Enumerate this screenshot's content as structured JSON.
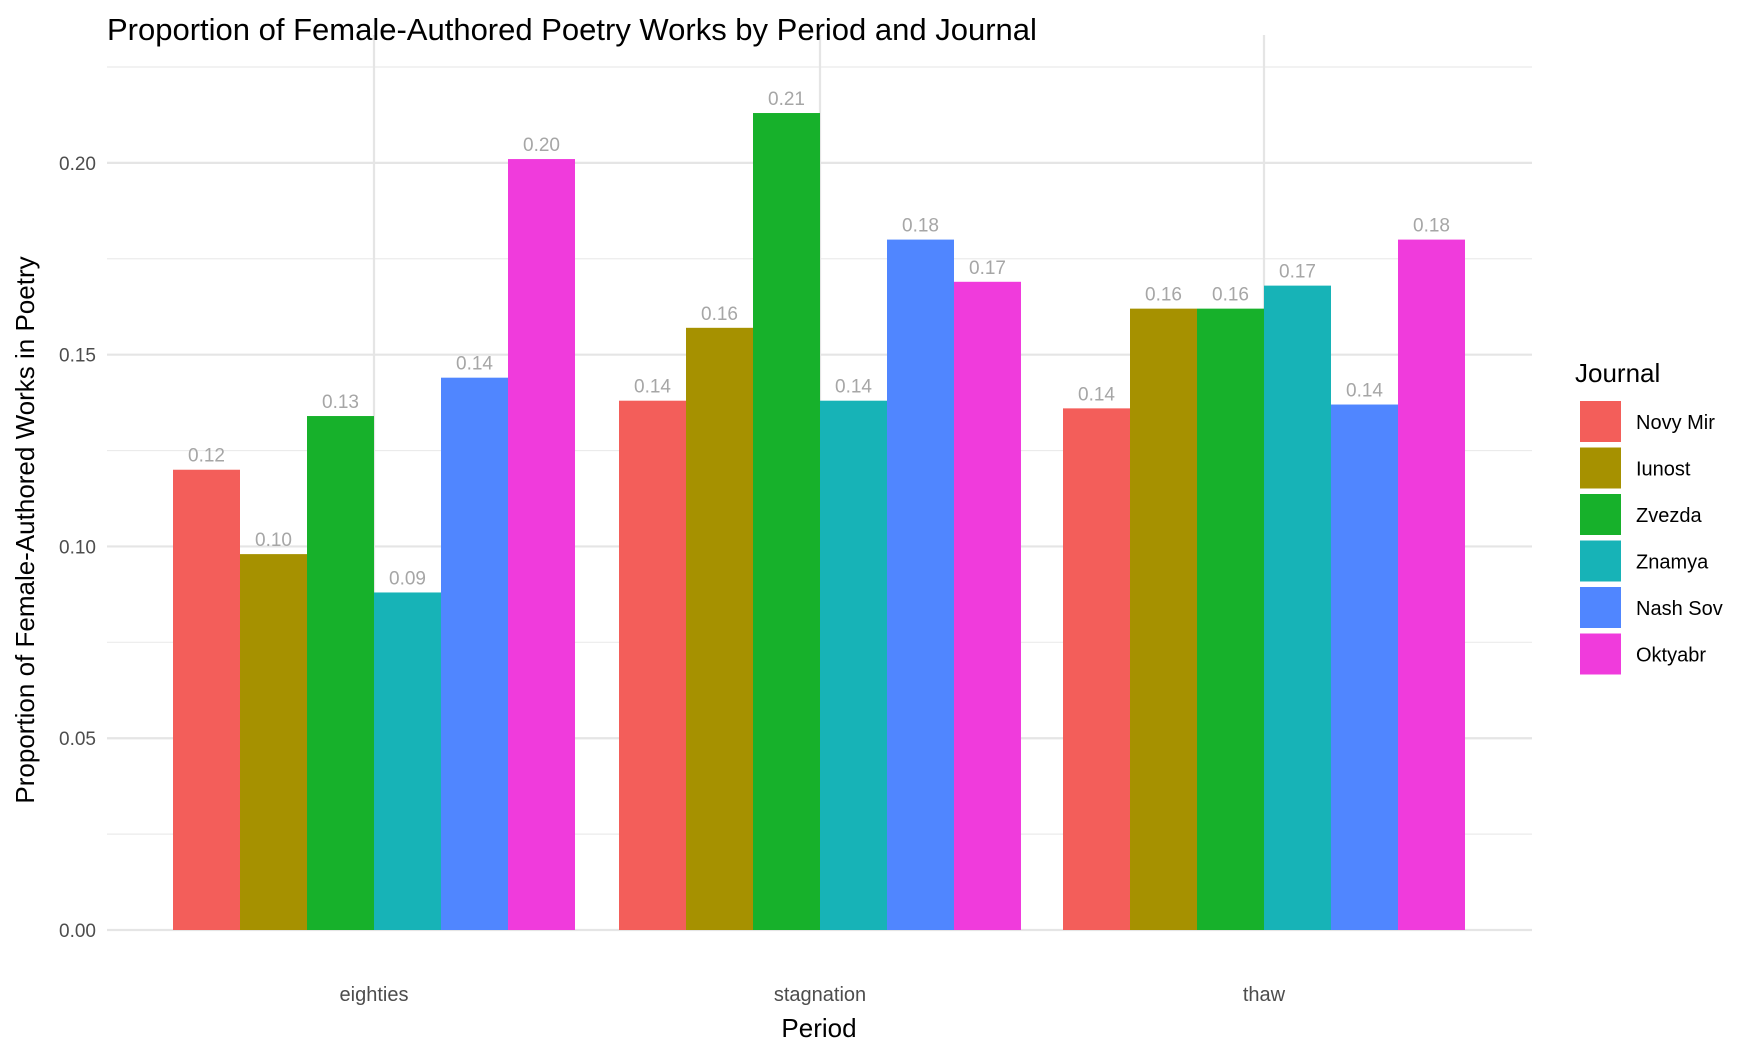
{
  "chart_data": {
    "type": "bar",
    "title": "Proportion of Female-Authored Poetry Works by Period and Journal",
    "xlabel": "Period",
    "ylabel": "Proportion of Female-Authored Works in Poetry",
    "categories": [
      "eighties",
      "stagnation",
      "thaw"
    ],
    "ylim": [
      0,
      0.225
    ],
    "yticks": [
      "0.00",
      "0.05",
      "0.10",
      "0.15",
      "0.20"
    ],
    "grid": true,
    "legend": {
      "title": "Journal",
      "placement": "right"
    },
    "series": [
      {
        "name": "Novy Mir",
        "color": "#F35E5A",
        "values": [
          0.12,
          0.138,
          0.136
        ],
        "labels": [
          "0.12",
          "0.14",
          "0.14"
        ]
      },
      {
        "name": "Iunost",
        "color": "#A69100",
        "values": [
          0.098,
          0.157,
          0.162
        ],
        "labels": [
          "0.10",
          "0.16",
          "0.16"
        ]
      },
      {
        "name": "Zvezda",
        "color": "#17B12B",
        "values": [
          0.134,
          0.213,
          0.162
        ],
        "labels": [
          "0.13",
          "0.21",
          "0.16"
        ]
      },
      {
        "name": "Znamya",
        "color": "#17B3B7",
        "values": [
          0.088,
          0.138,
          0.168
        ],
        "labels": [
          "0.09",
          "0.14",
          "0.17"
        ]
      },
      {
        "name": "Nash Sov",
        "color": "#5086FF",
        "values": [
          0.144,
          0.18,
          0.137
        ],
        "labels": [
          "0.14",
          "0.18",
          "0.14"
        ]
      },
      {
        "name": "Oktyabr",
        "color": "#F03BDC",
        "values": [
          0.201,
          0.169,
          0.18
        ],
        "labels": [
          "0.20",
          "0.17",
          "0.18"
        ]
      }
    ]
  }
}
